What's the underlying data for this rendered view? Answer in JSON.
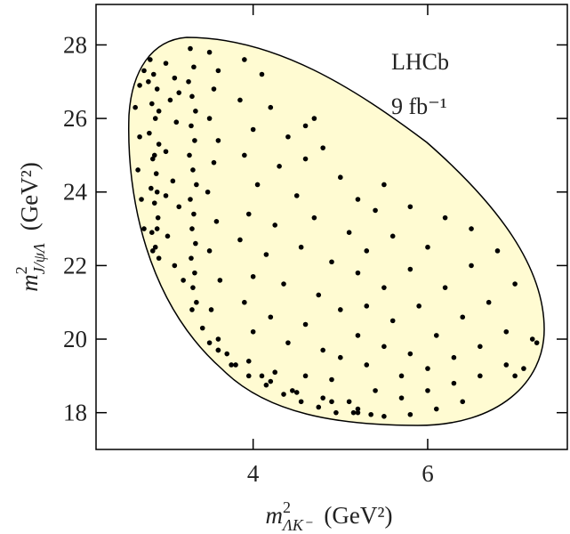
{
  "chart_data": {
    "type": "scatter",
    "annotations": [
      "LHCb",
      "9 fb⁻¹"
    ],
    "xlabel": {
      "symbol": "m",
      "power": "2",
      "subscript": "ΛK⁻",
      "unit": "(GeV²)"
    },
    "ylabel": {
      "symbol": "m",
      "power": "2",
      "subscript": "J/ψΛ",
      "unit": "(GeV²)"
    },
    "xlim": [
      2.2,
      7.6
    ],
    "ylim": [
      17.0,
      29.1
    ],
    "xticks": [
      4,
      6
    ],
    "yticks": [
      18,
      20,
      22,
      24,
      26,
      28
    ],
    "color": "#000000",
    "region_color": "#fffbd2",
    "x": [
      2.82,
      2.86,
      2.9,
      2.84,
      2.88,
      2.81,
      2.92,
      2.85,
      2.89,
      2.83,
      2.87,
      2.91,
      2.84,
      2.88,
      2.92,
      2.9,
      2.8,
      2.92,
      2.87,
      2.9,
      3.28,
      3.32,
      3.26,
      3.3,
      3.34,
      3.29,
      3.33,
      3.27,
      3.31,
      3.35,
      3.28,
      3.32,
      3.3,
      3.34,
      3.29,
      3.33,
      3.31,
      3.35,
      3.3,
      3.42,
      3.5,
      3.6,
      2.65,
      2.7,
      2.68,
      2.72,
      2.75,
      2.85,
      2.7,
      2.75,
      3.0,
      3.1,
      3.05,
      3.12,
      3.0,
      3.08,
      3.15,
      3.02,
      3.1,
      3.2,
      3.0,
      3.15,
      3.5,
      3.6,
      3.55,
      3.5,
      3.6,
      3.55,
      3.48,
      3.58,
      3.5,
      3.62,
      3.52,
      3.6,
      3.7,
      3.8,
      3.9,
      4.1,
      3.85,
      4.2,
      4.0,
      4.4,
      3.9,
      4.3,
      4.6,
      4.05,
      4.5,
      3.95,
      4.25,
      4.7,
      3.85,
      4.15,
      4.55,
      4.9,
      4.0,
      4.35,
      4.75,
      3.9,
      4.2,
      4.6,
      5.0,
      4.0,
      4.4,
      4.8,
      3.95,
      4.25,
      4.6,
      4.2,
      4.45,
      4.8,
      5.1,
      4.6,
      4.8,
      5.0,
      5.2,
      5.4,
      5.1,
      5.3,
      5.6,
      5.8,
      5.5,
      5.2,
      5.5,
      5.8,
      6.0,
      6.2,
      5.3,
      5.6,
      5.9,
      6.2,
      6.5,
      6.8,
      5.2,
      5.5,
      5.8,
      6.1,
      6.4,
      6.7,
      7.0,
      5.3,
      5.7,
      6.0,
      6.3,
      6.6,
      6.9,
      7.2,
      5.4,
      5.7,
      6.0,
      6.3,
      6.6,
      6.9,
      5.2,
      5.5,
      5.8,
      6.1,
      6.4,
      4.9,
      5.0,
      4.7,
      6.5,
      7.1,
      7.25,
      7.0,
      3.75,
      3.95,
      4.15,
      4.35,
      4.55,
      4.75,
      4.95,
      5.15,
      5.35,
      4.1,
      4.5,
      4.9,
      5.2,
      3.6
    ],
    "values": [
      27.6,
      27.2,
      26.8,
      26.4,
      26.0,
      25.6,
      25.3,
      24.9,
      24.5,
      24.1,
      23.7,
      23.3,
      22.9,
      22.5,
      22.2,
      23.0,
      27.0,
      26.2,
      25.0,
      24.0,
      27.9,
      27.4,
      27.0,
      26.6,
      26.2,
      25.8,
      25.4,
      25.0,
      24.6,
      24.2,
      23.8,
      23.4,
      23.0,
      22.6,
      22.2,
      21.8,
      21.4,
      21.0,
      20.8,
      20.3,
      19.9,
      19.7,
      26.3,
      25.5,
      24.6,
      23.8,
      23.0,
      22.4,
      26.9,
      27.3,
      27.5,
      27.1,
      26.5,
      25.9,
      25.1,
      24.3,
      23.6,
      22.8,
      22.0,
      21.6,
      23.9,
      26.7,
      27.8,
      27.3,
      26.8,
      26.0,
      25.4,
      24.8,
      24.0,
      23.2,
      22.4,
      21.6,
      20.8,
      20.0,
      19.6,
      19.3,
      27.6,
      27.2,
      26.5,
      26.3,
      25.7,
      25.5,
      25.0,
      24.7,
      24.9,
      24.2,
      23.9,
      23.4,
      23.1,
      23.3,
      22.7,
      22.3,
      22.5,
      22.1,
      21.7,
      21.5,
      21.2,
      21.0,
      20.6,
      20.4,
      20.8,
      20.2,
      19.9,
      19.7,
      19.4,
      19.1,
      19.0,
      18.85,
      18.6,
      18.4,
      18.3,
      25.8,
      25.2,
      24.4,
      23.8,
      23.5,
      22.9,
      22.4,
      22.8,
      23.6,
      24.2,
      21.8,
      21.4,
      21.9,
      22.5,
      23.3,
      20.9,
      20.5,
      20.9,
      21.4,
      22.0,
      22.4,
      20.1,
      19.8,
      19.6,
      20.1,
      20.6,
      21.0,
      21.5,
      19.3,
      19.0,
      19.2,
      19.5,
      19.8,
      20.2,
      20.0,
      18.6,
      18.4,
      18.6,
      18.8,
      19.0,
      19.3,
      18.0,
      17.9,
      17.95,
      18.1,
      18.3,
      18.9,
      19.5,
      26.0,
      23.0,
      19.2,
      19.9,
      19.0,
      19.3,
      19.0,
      18.75,
      18.5,
      18.3,
      18.15,
      18.0,
      18.0,
      17.95,
      19.0,
      18.55,
      18.3,
      18.1,
      19.7
    ]
  }
}
